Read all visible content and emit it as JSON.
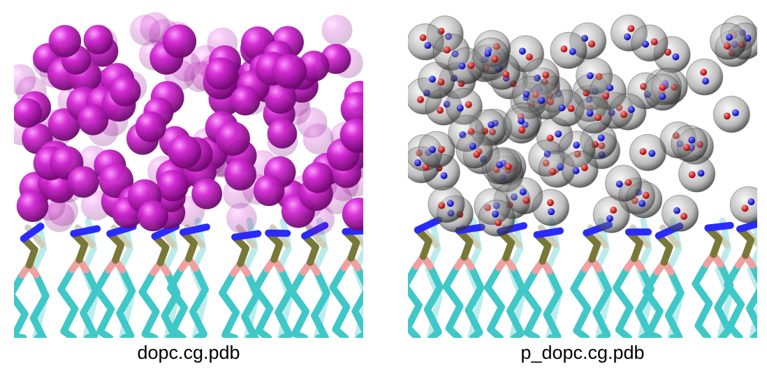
{
  "panels": [
    {
      "caption": "dopc.cg.pdb",
      "water_model": "standard-cg"
    },
    {
      "caption": "p_dopc.cg.pdb",
      "water_model": "polarizable-cg"
    }
  ],
  "colors": {
    "background": "#ffffff",
    "water_bead": "#c61ac6",
    "polar_shell": "#8a8a8a",
    "charge_neg": "#1a1aff",
    "charge_pos": "#e01414",
    "choline": "#2a2aff",
    "phosphate": "#787838",
    "glycerol": "#f0a0a0",
    "tail": "#40c8c8"
  }
}
